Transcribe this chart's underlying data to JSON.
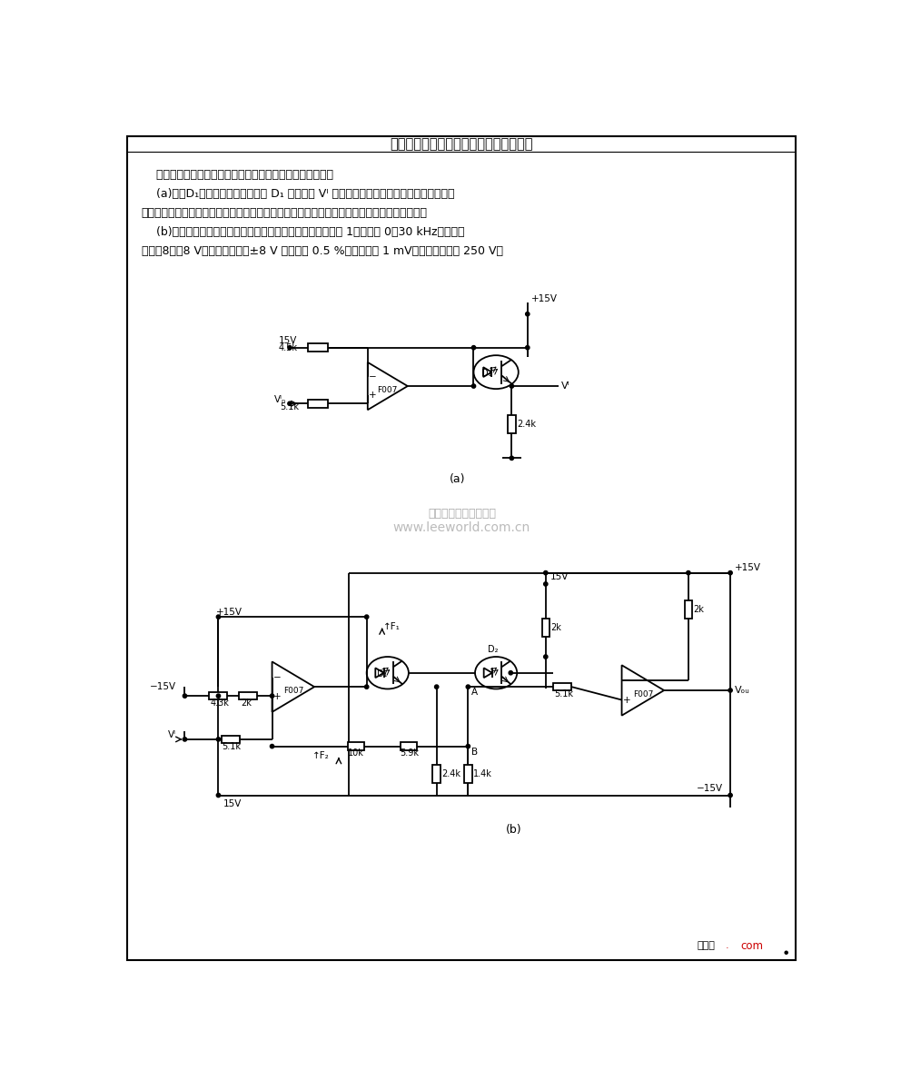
{
  "title": "电源电路中的改善光电隔离器线性的电路",
  "bg_color": "#ffffff",
  "page_width": 9.92,
  "page_height": 12.0,
  "text_lines": [
    "    利用负反馈技术可以大大提高光电耦合器件的传输线性度。",
    "    (a)中，D₁处在反馈通路中，流经 D₁ 的电流与 Vᴵ 严格成线性关系。这个电路的缺点是没有",
    "考虑到光电耦合器件电流传输比与工作电流之间的非线性关系。为此，须精心挑选、调整器件。",
    "    (b)中，增加第二级反馈，使线性度大大提高。本电路增益为 1，频率为 0～30 kHz，动态范",
    "围为－8～＋8 V，非线性失真（±8 V 时）小于 0.5 %，噪声小于 1 mV，共模电压大于 250 V。"
  ],
  "watermark1": "杭州烙霖科技有限公司",
  "watermark2": "www.leeworld.com.cn",
  "footer_left": "接线图",
  "footer_right": "com"
}
